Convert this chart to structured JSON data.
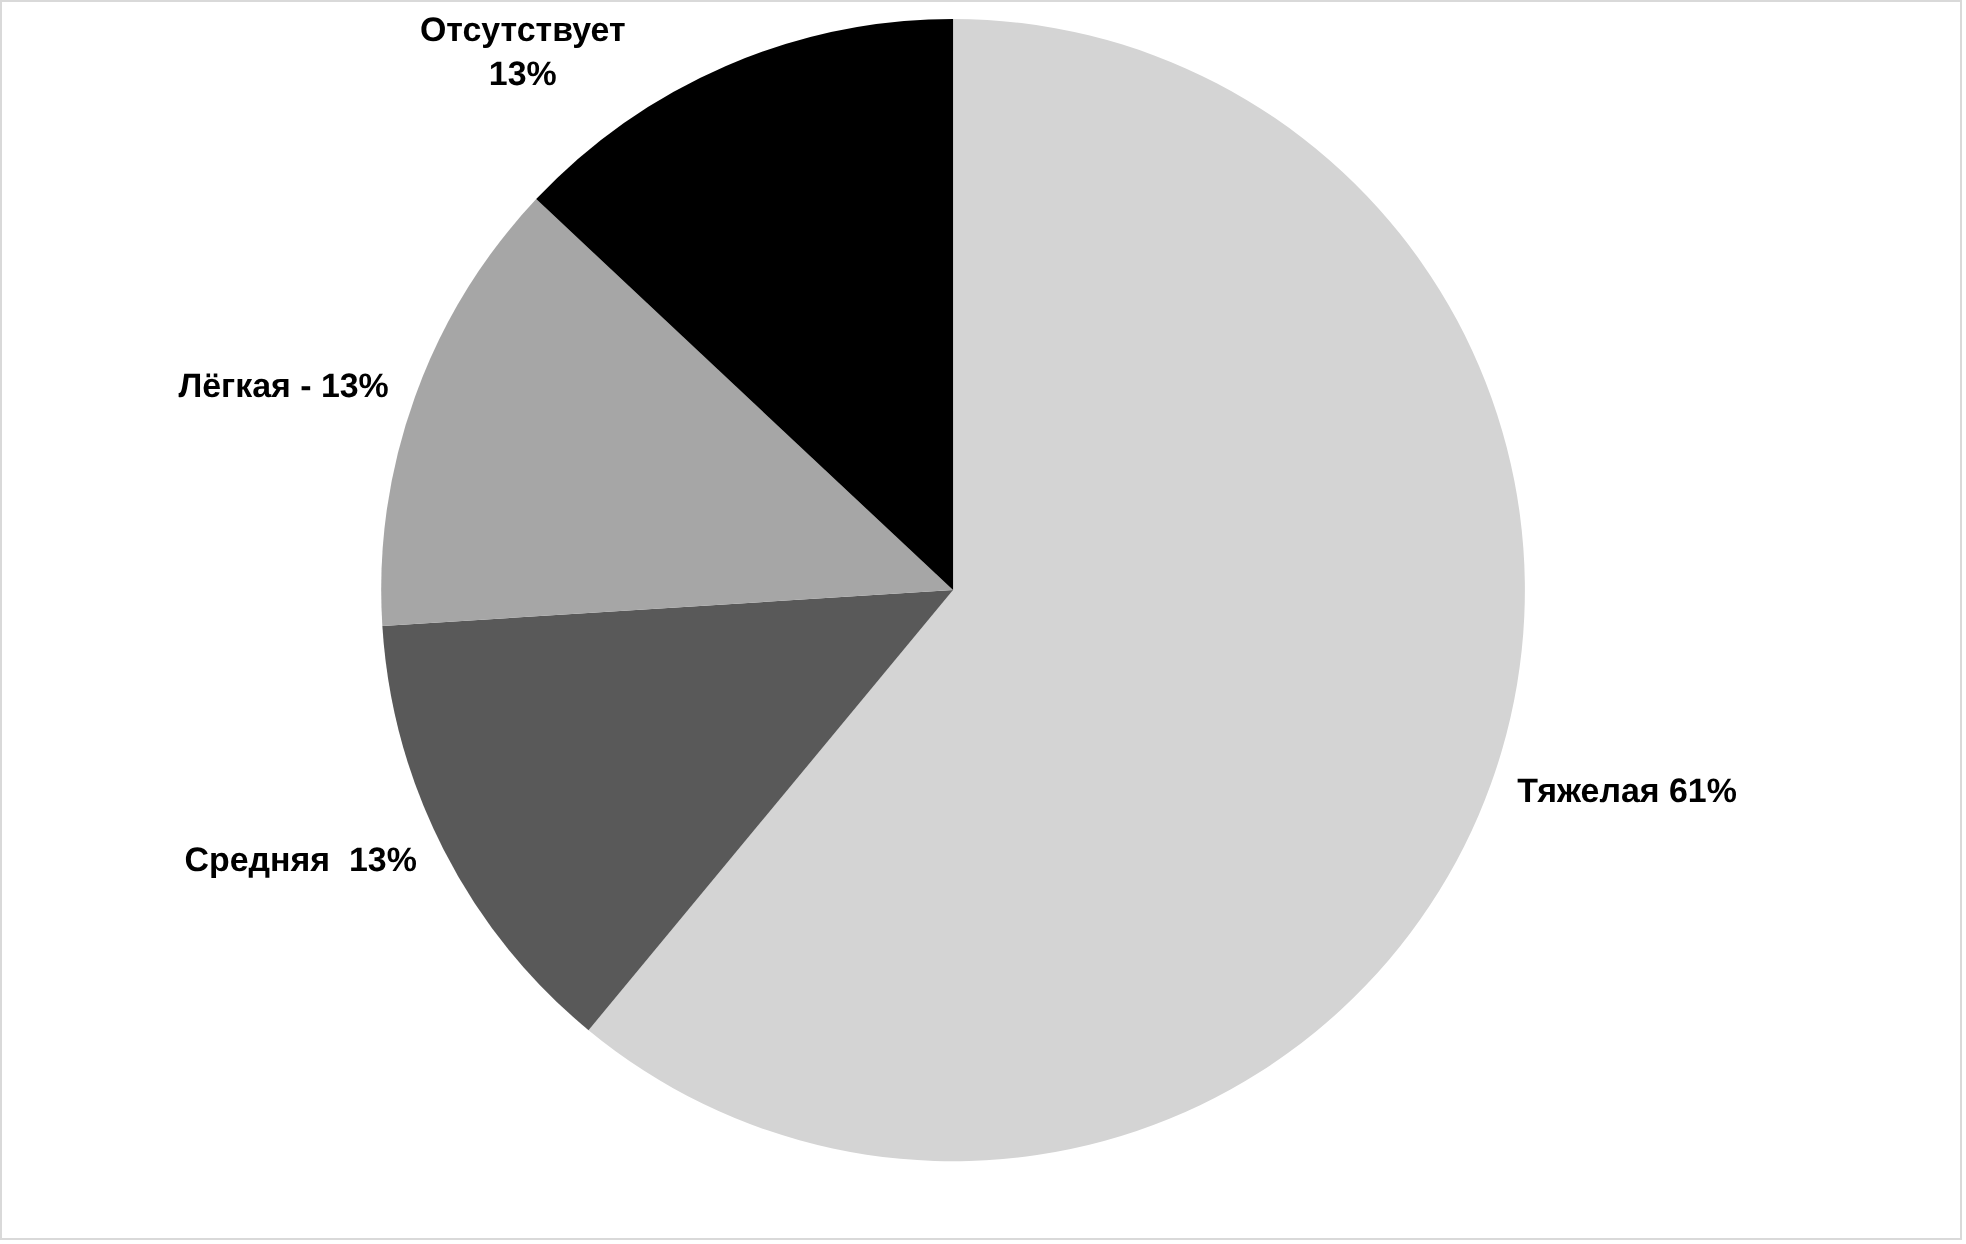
{
  "chart_data": {
    "type": "pie",
    "categories": [
      "Тяжелая 61%",
      "Средняя  13%",
      "Лёгкая - 13%",
      "Отсутствует\n13%"
    ],
    "values": [
      61,
      13,
      13,
      13
    ],
    "colors": [
      "#d4d4d4",
      "#595959",
      "#a6a6a6",
      "#000000"
    ],
    "legend": false
  }
}
